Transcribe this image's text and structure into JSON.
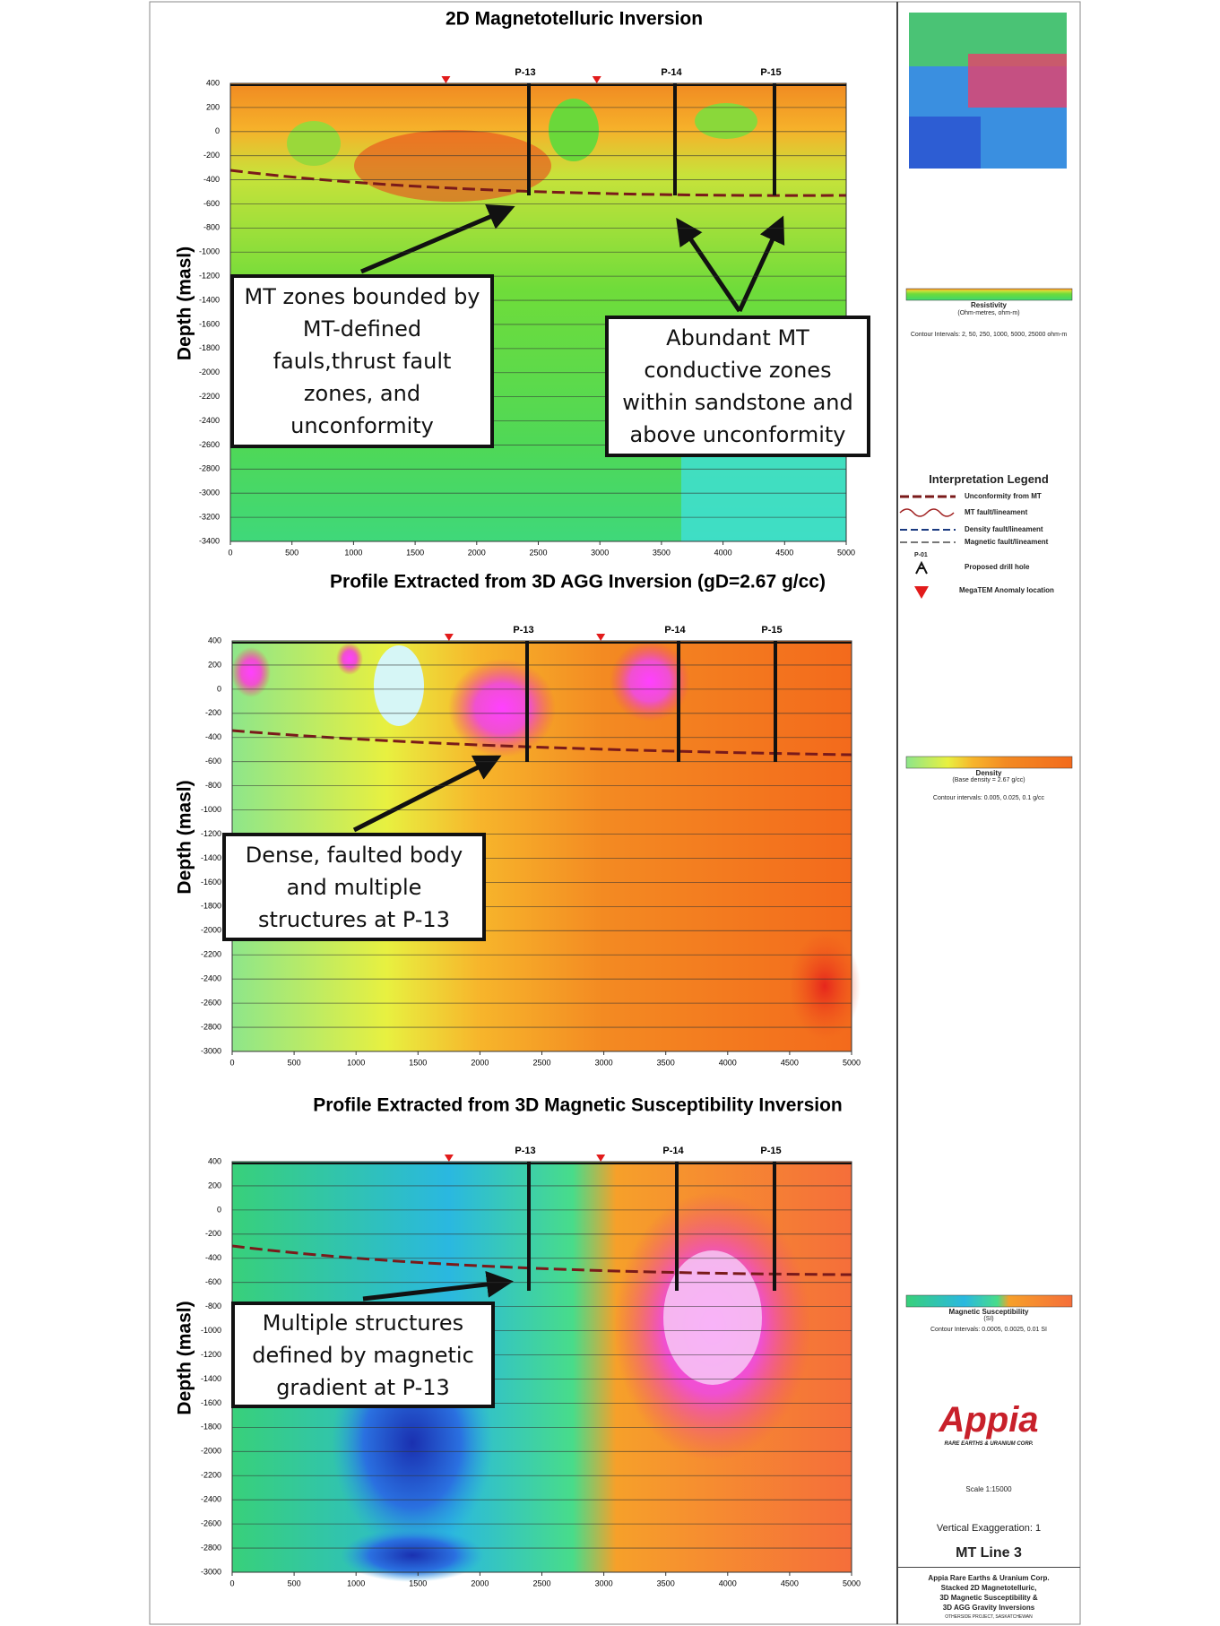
{
  "panels": [
    {
      "title": "2D Magnetotelluric Inversion",
      "y_label": "Depth (masl)",
      "yticks": [
        400,
        200,
        0,
        -200,
        -400,
        -600,
        -800,
        -1000,
        -1200,
        -1400,
        -1600,
        -1800,
        -2000,
        -2200,
        -2400,
        -2600,
        -2800,
        -3000,
        -3200,
        -3400
      ],
      "xticks": [
        0,
        500,
        1000,
        1500,
        2000,
        2500,
        3000,
        3500,
        4000,
        4500,
        5000
      ],
      "drill_holes": [
        "P-13",
        "P-14",
        "P-15"
      ],
      "callouts": [
        "MT zones bounded by MT-defined fauls,thrust fault zones, and unconformity",
        "Abundant MT conductive zones within sandstone and above unconformity"
      ]
    },
    {
      "title": "Profile Extracted from 3D AGG Inversion (gD=2.67 g/cc)",
      "y_label": "Depth (masl)",
      "yticks": [
        400,
        200,
        0,
        -200,
        -400,
        -600,
        -800,
        -1000,
        -1200,
        -1400,
        -1600,
        -1800,
        -2000,
        -2200,
        -2400,
        -2600,
        -2800,
        -3000
      ],
      "xticks": [
        0,
        500,
        1000,
        1500,
        2000,
        2500,
        3000,
        3500,
        4000,
        4500,
        5000
      ],
      "drill_holes": [
        "P-13",
        "P-14",
        "P-15"
      ],
      "callouts": [
        "Dense, faulted body and multiple structures at P-13"
      ]
    },
    {
      "title": "Profile Extracted from 3D Magnetic Susceptibility Inversion",
      "y_label": "Depth (masl)",
      "yticks": [
        400,
        200,
        0,
        -200,
        -400,
        -600,
        -800,
        -1000,
        -1200,
        -1400,
        -1600,
        -1800,
        -2000,
        -2200,
        -2400,
        -2600,
        -2800,
        -3000
      ],
      "xticks": [
        0,
        500,
        1000,
        1500,
        2000,
        2500,
        3000,
        3500,
        4000,
        4500,
        5000
      ],
      "drill_holes": [
        "P-13",
        "P-14",
        "P-15"
      ],
      "callouts": [
        "Multiple structures defined by magnetic gradient at P-13"
      ]
    }
  ],
  "sidebar": {
    "resistivity": {
      "title": "Resistivity",
      "units": "(Ohm-metres, ohm-m)",
      "contours": "Contour Intervals: 2, 50, 250, 1000, 5000, 25000 ohm-m"
    },
    "legend": {
      "title": "Interpretation Legend",
      "items": [
        "Unconformity from MT",
        "MT fault/lineament",
        "Density fault/lineament",
        "Magnetic fault/lineament",
        "Proposed drill hole",
        "MegaTEM Anomaly location"
      ],
      "drill_symbol": "P-01"
    },
    "density": {
      "title": "Density",
      "units": "(Base density = 2.67 g/cc)",
      "contours": "Contour intervals: 0.005, 0.025, 0.1 g/cc"
    },
    "magnetic": {
      "title": "Magnetic Susceptibility",
      "units": "(SI)",
      "contours": "Contour Intervals: 0.0005, 0.0025, 0.01 SI"
    },
    "logo": "Appia",
    "logo_sub": "RARE EARTHS & URANIUM CORP.",
    "scale": "Scale 1:15000",
    "exaggeration": "Vertical Exaggeration: 1",
    "line_name": "MT Line 3",
    "title_block": [
      "Appia Rare Earths & Uranium Corp.",
      "Stacked 2D Magnetotelluric,",
      "3D Magnetic Susceptibility &",
      "3D AGG Gravity Inversions",
      "OTHERSIDE PROJECT, SASKATCHEWAN"
    ]
  }
}
